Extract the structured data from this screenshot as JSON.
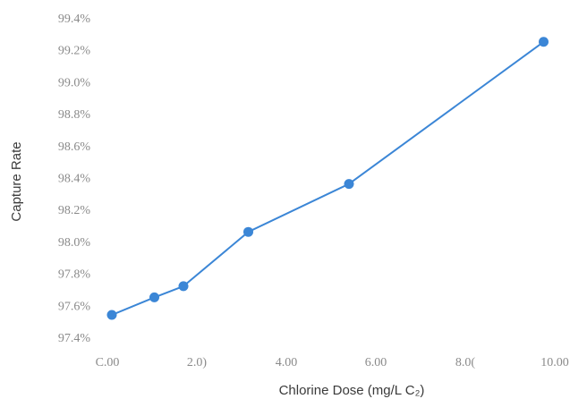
{
  "chart_data": {
    "type": "line",
    "title": "",
    "xlabel": "Chlorine Dose (mg/L C₂)",
    "ylabel": "Capture Rate",
    "xlim": [
      0,
      10
    ],
    "ylim": [
      97.4,
      99.4
    ],
    "x_ticks": [
      0,
      2,
      4,
      6,
      8,
      10
    ],
    "x_tick_labels": [
      "C.00",
      "2.0)",
      "4.00",
      "6.00",
      "8.0(",
      "10.00"
    ],
    "y_ticks": [
      97.4,
      97.6,
      97.8,
      98.0,
      98.2,
      98.4,
      98.6,
      98.8,
      99.0,
      99.2,
      99.4
    ],
    "y_tick_labels": [
      "97.4%",
      "97.6%",
      "97.8%",
      "98.0%",
      "98.2%",
      "98.4%",
      "98.6%",
      "98.8%",
      "99.0%",
      "99.2%",
      "99.4%"
    ],
    "grid": false,
    "legend": "none",
    "series": [
      {
        "color": "#3b86d6",
        "x": [
          0.1,
          1.05,
          1.7,
          3.15,
          5.4,
          9.75
        ],
        "y": [
          97.54,
          97.65,
          97.72,
          98.06,
          98.36,
          99.25
        ]
      }
    ]
  }
}
